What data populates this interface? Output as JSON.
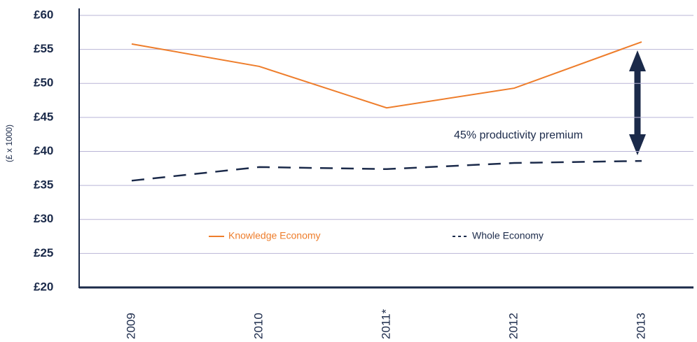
{
  "chart_data": {
    "type": "line",
    "y_label": "(£ x 1000)",
    "annotation": "45% productivity premium",
    "categories": [
      "2009",
      "2010",
      "2011*",
      "2012",
      "2013"
    ],
    "series": [
      {
        "name": "Knowledge Economy",
        "color": "#ee7d2b",
        "dash": false,
        "values": [
          55.8,
          52.5,
          46.4,
          49.3,
          56.1
        ]
      },
      {
        "name": "Whole Economy",
        "color": "#1b2a4a",
        "dash": true,
        "values": [
          35.7,
          37.7,
          37.4,
          38.3,
          38.6
        ]
      }
    ],
    "ylim": [
      20,
      60
    ],
    "yticks": [
      {
        "value": 20,
        "label": "£20"
      },
      {
        "value": 25,
        "label": "£25"
      },
      {
        "value": 30,
        "label": "£30"
      },
      {
        "value": 35,
        "label": "£35"
      },
      {
        "value": 40,
        "label": "£40"
      },
      {
        "value": 45,
        "label": "£45"
      },
      {
        "value": 50,
        "label": "£50"
      },
      {
        "value": 55,
        "label": "£55"
      },
      {
        "value": 60,
        "label": "£60"
      }
    ],
    "grid": true
  }
}
